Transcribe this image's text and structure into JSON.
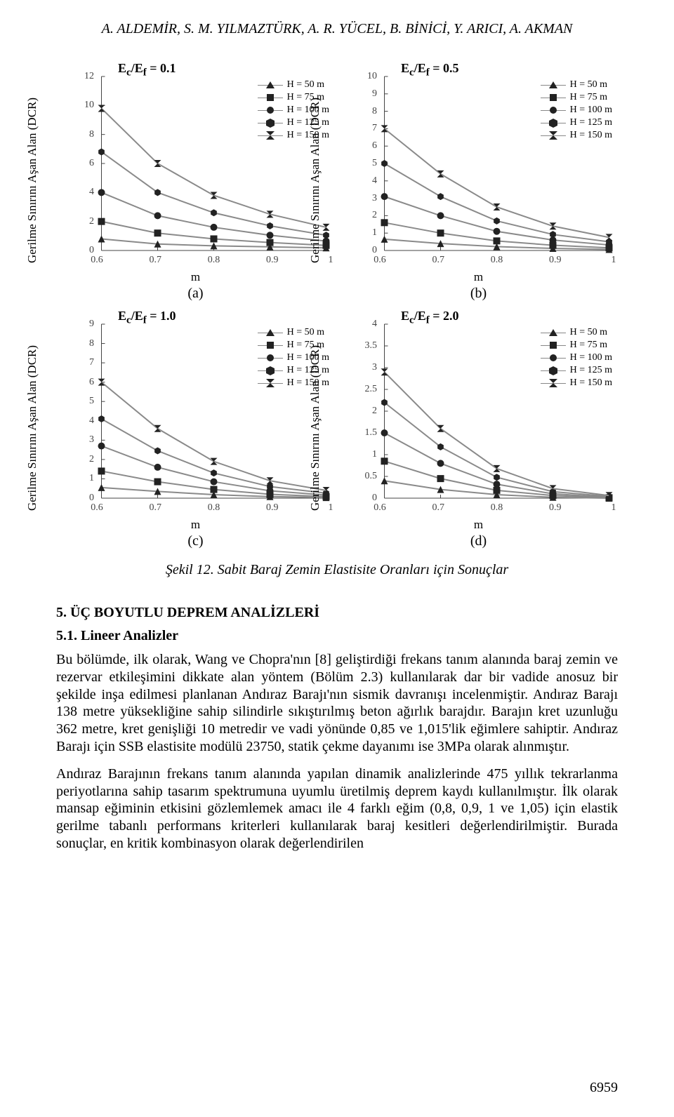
{
  "authors": "A. ALDEMİR, S. M. YILMAZTÜRK, A. R. YÜCEL, B. BİNİCİ, Y. ARICI, A. AKMAN",
  "axis_ylabel": "Gerilme Sınırını Aşan Alan (DCR)",
  "axis_xlabel": "m",
  "line_color": "#8a8a8a",
  "tick_color": "#444444",
  "marker_color": "#222222",
  "charts": {
    "a": {
      "title": "E_c/E_f = 0.1",
      "sub": "(a)",
      "x_ticks": [
        0.6,
        0.7,
        0.8,
        0.9,
        1
      ],
      "y_ticks": [
        0,
        2,
        4,
        6,
        8,
        10,
        12
      ],
      "xlim": [
        0.6,
        1.0
      ],
      "ylim": [
        0,
        12
      ],
      "legend": [
        "H = 50 m",
        "H = 75 m",
        "H = 100 m",
        "H = 125 m",
        "H = 150 m"
      ],
      "series": [
        {
          "marker": "tri",
          "pts": [
            [
              0.6,
              0.8
            ],
            [
              0.7,
              0.45
            ],
            [
              0.8,
              0.32
            ],
            [
              0.9,
              0.25
            ],
            [
              1.0,
              0.18
            ]
          ]
        },
        {
          "marker": "sq",
          "pts": [
            [
              0.6,
              2.0
            ],
            [
              0.7,
              1.2
            ],
            [
              0.8,
              0.8
            ],
            [
              0.9,
              0.55
            ],
            [
              1.0,
              0.35
            ]
          ]
        },
        {
          "marker": "ci",
          "pts": [
            [
              0.6,
              4.0
            ],
            [
              0.7,
              2.4
            ],
            [
              0.8,
              1.6
            ],
            [
              0.9,
              1.05
            ],
            [
              1.0,
              0.65
            ]
          ]
        },
        {
          "marker": "hx",
          "pts": [
            [
              0.6,
              6.8
            ],
            [
              0.7,
              4.0
            ],
            [
              0.8,
              2.6
            ],
            [
              0.9,
              1.7
            ],
            [
              1.0,
              1.05
            ]
          ]
        },
        {
          "marker": "hg",
          "pts": [
            [
              0.6,
              9.8
            ],
            [
              0.7,
              6.0
            ],
            [
              0.8,
              3.8
            ],
            [
              0.9,
              2.5
            ],
            [
              1.0,
              1.6
            ]
          ]
        }
      ]
    },
    "b": {
      "title": "E_c/E_f = 0.5",
      "sub": "(b)",
      "x_ticks": [
        0.6,
        0.7,
        0.8,
        0.9,
        1
      ],
      "y_ticks": [
        0,
        1,
        2,
        3,
        4,
        5,
        6,
        7,
        8,
        9,
        10
      ],
      "xlim": [
        0.6,
        1.0
      ],
      "ylim": [
        0,
        10
      ],
      "legend": [
        "H = 50 m",
        "H = 75 m",
        "H = 100 m",
        "H = 125 m",
        "H = 150 m"
      ],
      "series": [
        {
          "marker": "tri",
          "pts": [
            [
              0.6,
              0.65
            ],
            [
              0.7,
              0.4
            ],
            [
              0.8,
              0.22
            ],
            [
              0.9,
              0.12
            ],
            [
              1.0,
              0.06
            ]
          ]
        },
        {
          "marker": "sq",
          "pts": [
            [
              0.6,
              1.6
            ],
            [
              0.7,
              1.0
            ],
            [
              0.8,
              0.55
            ],
            [
              0.9,
              0.3
            ],
            [
              1.0,
              0.15
            ]
          ]
        },
        {
          "marker": "ci",
          "pts": [
            [
              0.6,
              3.1
            ],
            [
              0.7,
              2.0
            ],
            [
              0.8,
              1.1
            ],
            [
              0.9,
              0.6
            ],
            [
              1.0,
              0.32
            ]
          ]
        },
        {
          "marker": "hx",
          "pts": [
            [
              0.6,
              5.0
            ],
            [
              0.7,
              3.1
            ],
            [
              0.8,
              1.7
            ],
            [
              0.9,
              0.92
            ],
            [
              1.0,
              0.5
            ]
          ]
        },
        {
          "marker": "hg",
          "pts": [
            [
              0.6,
              7.0
            ],
            [
              0.7,
              4.4
            ],
            [
              0.8,
              2.5
            ],
            [
              0.9,
              1.4
            ],
            [
              1.0,
              0.75
            ]
          ]
        }
      ]
    },
    "c": {
      "title": "E_c/E_f = 1.0",
      "sub": "(c)",
      "x_ticks": [
        0.6,
        0.7,
        0.8,
        0.9,
        1
      ],
      "y_ticks": [
        0,
        1,
        2,
        3,
        4,
        5,
        6,
        7,
        8,
        9
      ],
      "xlim": [
        0.6,
        1.0
      ],
      "ylim": [
        0,
        9
      ],
      "legend": [
        "H = 50 m",
        "H = 75 m",
        "H = 100 m",
        "H = 125 m",
        "H = 150 m"
      ],
      "series": [
        {
          "marker": "tri",
          "pts": [
            [
              0.6,
              0.55
            ],
            [
              0.7,
              0.35
            ],
            [
              0.8,
              0.18
            ],
            [
              0.9,
              0.08
            ],
            [
              1.0,
              0.03
            ]
          ]
        },
        {
          "marker": "sq",
          "pts": [
            [
              0.6,
              1.4
            ],
            [
              0.7,
              0.85
            ],
            [
              0.8,
              0.45
            ],
            [
              0.9,
              0.2
            ],
            [
              1.0,
              0.08
            ]
          ]
        },
        {
          "marker": "ci",
          "pts": [
            [
              0.6,
              2.7
            ],
            [
              0.7,
              1.6
            ],
            [
              0.8,
              0.85
            ],
            [
              0.9,
              0.38
            ],
            [
              1.0,
              0.16
            ]
          ]
        },
        {
          "marker": "hx",
          "pts": [
            [
              0.6,
              4.1
            ],
            [
              0.7,
              2.45
            ],
            [
              0.8,
              1.3
            ],
            [
              0.9,
              0.6
            ],
            [
              1.0,
              0.26
            ]
          ]
        },
        {
          "marker": "hg",
          "pts": [
            [
              0.6,
              6.0
            ],
            [
              0.7,
              3.6
            ],
            [
              0.8,
              1.9
            ],
            [
              0.9,
              0.9
            ],
            [
              1.0,
              0.4
            ]
          ]
        }
      ]
    },
    "d": {
      "title": "E_c/E_f = 2.0",
      "sub": "(d)",
      "x_ticks": [
        0.6,
        0.7,
        0.8,
        0.9,
        1
      ],
      "y_ticks": [
        0,
        0.5,
        1,
        1.5,
        2,
        2.5,
        3,
        3.5,
        4
      ],
      "xlim": [
        0.6,
        1.0
      ],
      "ylim": [
        0,
        4
      ],
      "legend": [
        "H = 50 m",
        "H = 75 m",
        "H = 100 m",
        "H = 125 m",
        "H = 150 m"
      ],
      "series": [
        {
          "marker": "tri",
          "pts": [
            [
              0.6,
              0.4
            ],
            [
              0.7,
              0.2
            ],
            [
              0.8,
              0.08
            ],
            [
              0.9,
              0.02
            ],
            [
              1.0,
              0.0
            ]
          ]
        },
        {
          "marker": "sq",
          "pts": [
            [
              0.6,
              0.85
            ],
            [
              0.7,
              0.45
            ],
            [
              0.8,
              0.18
            ],
            [
              0.9,
              0.06
            ],
            [
              1.0,
              0.01
            ]
          ]
        },
        {
          "marker": "ci",
          "pts": [
            [
              0.6,
              1.5
            ],
            [
              0.7,
              0.8
            ],
            [
              0.8,
              0.32
            ],
            [
              0.9,
              0.1
            ],
            [
              1.0,
              0.02
            ]
          ]
        },
        {
          "marker": "hx",
          "pts": [
            [
              0.6,
              2.2
            ],
            [
              0.7,
              1.18
            ],
            [
              0.8,
              0.48
            ],
            [
              0.9,
              0.15
            ],
            [
              1.0,
              0.04
            ]
          ]
        },
        {
          "marker": "hg",
          "pts": [
            [
              0.6,
              2.9
            ],
            [
              0.7,
              1.6
            ],
            [
              0.8,
              0.68
            ],
            [
              0.9,
              0.22
            ],
            [
              1.0,
              0.06
            ]
          ]
        }
      ]
    }
  },
  "markers": {
    "tri": "m-tri-up",
    "sq": "m-square",
    "ci": "m-circle",
    "hx": "m-hex",
    "hg": "m-hourglass"
  },
  "caption": "Şekil 12. Sabit Baraj Zemin Elastisite Oranları için Sonuçlar",
  "section5_title": "5.   ÜÇ BOYUTLU DEPREM ANALİZLERİ",
  "section51_title": "5.1. Lineer Analizler",
  "para1": "Bu bölümde, ilk olarak, Wang ve Chopra'nın [8] geliştirdiği frekans tanım alanında baraj zemin ve rezervar etkileşimini dikkate alan yöntem (Bölüm 2.3) kullanılarak dar bir vadide anosuz bir şekilde inşa edilmesi planlanan Andıraz Barajı'nın sismik davranışı incelenmiştir. Andıraz Barajı 138 metre yüksekliğine sahip silindirle sıkıştırılmış beton ağırlık barajdır. Barajın kret uzunluğu 362 metre, kret genişliği 10 metredir ve vadi yönünde 0,85 ve 1,015'lik eğimlere sahiptir. Andıraz Barajı için SSB elastisite modülü 23750, statik çekme dayanımı ise 3MPa olarak alınmıştır.",
  "para2": "Andıraz Barajının frekans tanım alanında yapılan dinamik analizlerinde 475 yıllık tekrarlanma periyotlarına sahip tasarım spektrumuna uyumlu üretilmiş deprem kaydı kullanılmıştır. İlk olarak mansap eğiminin etkisini gözlemlemek amacı ile 4 farklı eğim (0,8, 0,9, 1 ve 1,05) için elastik gerilme tabanlı performans kriterleri kullanılarak baraj kesitleri değerlendirilmiştir. Burada sonuçlar, en kritik kombinasyon olarak değerlendirilen",
  "page_number": "6959"
}
